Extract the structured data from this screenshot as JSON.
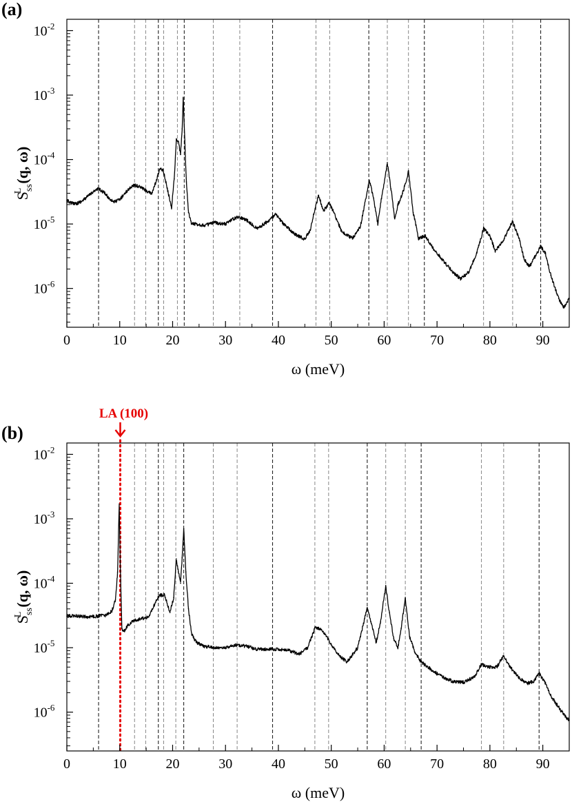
{
  "chart_data": [
    {
      "panel": "(a)",
      "type": "line",
      "xlabel": "ω (meV)",
      "ylabel": {
        "main": "S",
        "sub": "ss",
        "sup": "L",
        "args": "(q, ω)"
      },
      "xlim": [
        0,
        95
      ],
      "ylim": [
        2.5e-07,
        0.015
      ],
      "yscale": "log",
      "x_ticks": [
        0,
        10,
        20,
        30,
        40,
        50,
        60,
        70,
        80,
        90
      ],
      "y_ticks": [
        {
          "value": 1e-06,
          "base": "10",
          "exp": "-6"
        },
        {
          "value": 1e-05,
          "base": "10",
          "exp": "-5"
        },
        {
          "value": 0.0001,
          "base": "10",
          "exp": "-4"
        },
        {
          "value": 0.001,
          "base": "10",
          "exp": "-3"
        },
        {
          "value": 0.01,
          "base": "10",
          "exp": "-2"
        }
      ],
      "vlines": [
        6,
        12.8,
        14.9,
        17.3,
        18.3,
        20.9,
        22.2,
        27.7,
        32.7,
        38.9,
        47.1,
        49.7,
        57.1,
        60.6,
        64.6,
        67.6,
        78.8,
        84.3,
        89.6
      ],
      "series": [
        {
          "x": [
            0,
            1,
            2,
            3,
            4,
            5,
            6,
            7,
            8,
            9,
            10,
            11,
            12,
            12.8,
            14,
            15,
            16,
            17,
            17.5,
            18.2,
            19,
            19.8,
            20.3,
            20.7,
            21.1,
            21.5,
            21.8,
            22,
            22.3,
            22.6,
            23,
            23.6,
            24.5,
            26,
            28,
            30,
            31,
            32.5,
            34,
            36,
            38,
            39.5,
            41,
            43,
            45,
            46,
            47,
            47.6,
            48.5,
            49.6,
            50.5,
            52,
            54,
            55.5,
            57.2,
            58,
            58.8,
            59.5,
            60.6,
            61.3,
            62,
            62.6,
            63.5,
            64.6,
            65.5,
            66.5,
            67.8,
            69,
            71,
            73,
            74.5,
            76,
            77.5,
            78.8,
            80,
            81,
            82.5,
            84.3,
            85.5,
            86.5,
            87.5,
            89.6,
            90.5,
            91.5,
            93,
            94,
            95
          ],
          "y": [
            2.3e-05,
            2.1e-05,
            2.1e-05,
            2.3e-05,
            2.7e-05,
            3.2e-05,
            3.5e-05,
            3.1e-05,
            2.5e-05,
            2.2e-05,
            2.4e-05,
            3e-05,
            3.7e-05,
            4e-05,
            3.7e-05,
            3.3e-05,
            2.9e-05,
            4.8e-05,
            7e-05,
            7e-05,
            3.5e-05,
            1.8e-05,
            5e-05,
            0.0002,
            0.00019,
            0.00012,
            0.0003,
            0.0009,
            0.0002,
            4.5e-05,
            1.5e-05,
            1e-05,
            1e-05,
            9.5e-06,
            1.05e-05,
            1e-05,
            1.15e-05,
            1.3e-05,
            1.15e-05,
            8.5e-06,
            1.1e-05,
            1.4e-05,
            1e-05,
            7e-06,
            5.8e-06,
            8e-06,
            1.8e-05,
            2.8e-05,
            1.6e-05,
            2.1e-05,
            1.5e-05,
            7.5e-06,
            6e-06,
            9e-06,
            4.8e-05,
            2.5e-05,
            1e-05,
            2.5e-05,
            9e-05,
            3.5e-05,
            1.2e-05,
            2e-05,
            3e-05,
            6.5e-05,
            1.5e-05,
            6e-06,
            6.5e-06,
            4.5e-06,
            2.8e-06,
            1.8e-06,
            1.4e-06,
            1.8e-06,
            3.5e-06,
            8.5e-06,
            6.5e-06,
            3.8e-06,
            5.5e-06,
            1.1e-05,
            6e-06,
            2.8e-06,
            2.2e-06,
            4.5e-06,
            3.5e-06,
            1.6e-06,
            7e-07,
            5e-07,
            7e-07
          ]
        }
      ]
    },
    {
      "panel": "(b)",
      "type": "line",
      "xlabel": "ω (meV)",
      "ylabel": {
        "main": "S",
        "sub": "ss",
        "sup": "L",
        "args": "(q, ω)"
      },
      "xlim": [
        0,
        95
      ],
      "ylim": [
        2.5e-07,
        0.015
      ],
      "yscale": "log",
      "x_ticks": [
        0,
        10,
        20,
        30,
        40,
        50,
        60,
        70,
        80,
        90
      ],
      "y_ticks": [
        {
          "value": 1e-06,
          "base": "10",
          "exp": "-6"
        },
        {
          "value": 1e-05,
          "base": "10",
          "exp": "-5"
        },
        {
          "value": 0.0001,
          "base": "10",
          "exp": "-4"
        },
        {
          "value": 0.001,
          "base": "10",
          "exp": "-3"
        },
        {
          "value": 0.01,
          "base": "10",
          "exp": "-2"
        }
      ],
      "vlines": [
        6,
        12.8,
        14.9,
        17.3,
        18.3,
        20.6,
        22.1,
        27.7,
        32.2,
        38.9,
        46.9,
        49.5,
        56.8,
        60.3,
        64.0,
        67.0,
        78.4,
        82.6,
        89.3
      ],
      "annotation": {
        "text": "LA (100)",
        "x": 10.1
      },
      "series": [
        {
          "x": [
            0,
            2,
            4,
            6,
            7.5,
            8.5,
            9.2,
            9.6,
            9.9,
            10.1,
            10.4,
            10.8,
            11.5,
            12.5,
            14,
            15.5,
            16.5,
            17.5,
            18.5,
            19.5,
            20.2,
            20.7,
            21.1,
            21.5,
            21.8,
            22.1,
            22.5,
            23,
            23.6,
            24.5,
            26,
            28,
            30,
            32,
            34,
            36,
            38,
            40,
            42,
            44,
            45.5,
            47,
            48.5,
            50,
            51.5,
            53,
            55,
            56.8,
            57.5,
            58.5,
            59.3,
            60.3,
            61,
            61.8,
            62.6,
            63.2,
            64,
            64.8,
            65.8,
            67,
            69,
            71,
            73,
            75,
            77,
            78.4,
            80,
            81.3,
            82.6,
            84,
            85.5,
            87,
            88.3,
            89.3,
            90.5,
            91.5,
            93,
            94,
            95
          ],
          "y": [
            3.1e-05,
            3.1e-05,
            3e-05,
            3.1e-05,
            3.2e-05,
            3.7e-05,
            5.5e-05,
            0.00015,
            0.0017,
            0.0002,
            2e-05,
            1.8e-05,
            2.2e-05,
            2.6e-05,
            2.8e-05,
            3e-05,
            4.5e-05,
            6.5e-05,
            6.5e-05,
            3.5e-05,
            6e-05,
            0.00024,
            0.00015,
            0.0001,
            0.00025,
            0.0007,
            0.00015,
            4e-05,
            1.6e-05,
            1.2e-05,
            1.05e-05,
            1e-05,
            1e-05,
            1.1e-05,
            1.05e-05,
            9.5e-06,
            9.5e-06,
            9.5e-06,
            9e-06,
            8e-06,
            1e-05,
            2.1e-05,
            1.8e-05,
            1.1e-05,
            7.5e-06,
            6e-06,
            1e-05,
            4.2e-05,
            2.5e-05,
            1.2e-05,
            2.5e-05,
            9e-05,
            3.5e-05,
            1.4e-05,
            1e-05,
            2e-05,
            5.8e-05,
            1.5e-05,
            8.5e-06,
            6e-06,
            4.5e-06,
            3.5e-06,
            3e-06,
            2.9e-06,
            3.5e-06,
            5.5e-06,
            5e-06,
            5e-06,
            7.5e-06,
            4.8e-06,
            3.4e-06,
            2.8e-06,
            3e-06,
            4e-06,
            2.8e-06,
            1.8e-06,
            1.2e-06,
            9e-07,
            7.5e-07
          ]
        }
      ]
    }
  ]
}
